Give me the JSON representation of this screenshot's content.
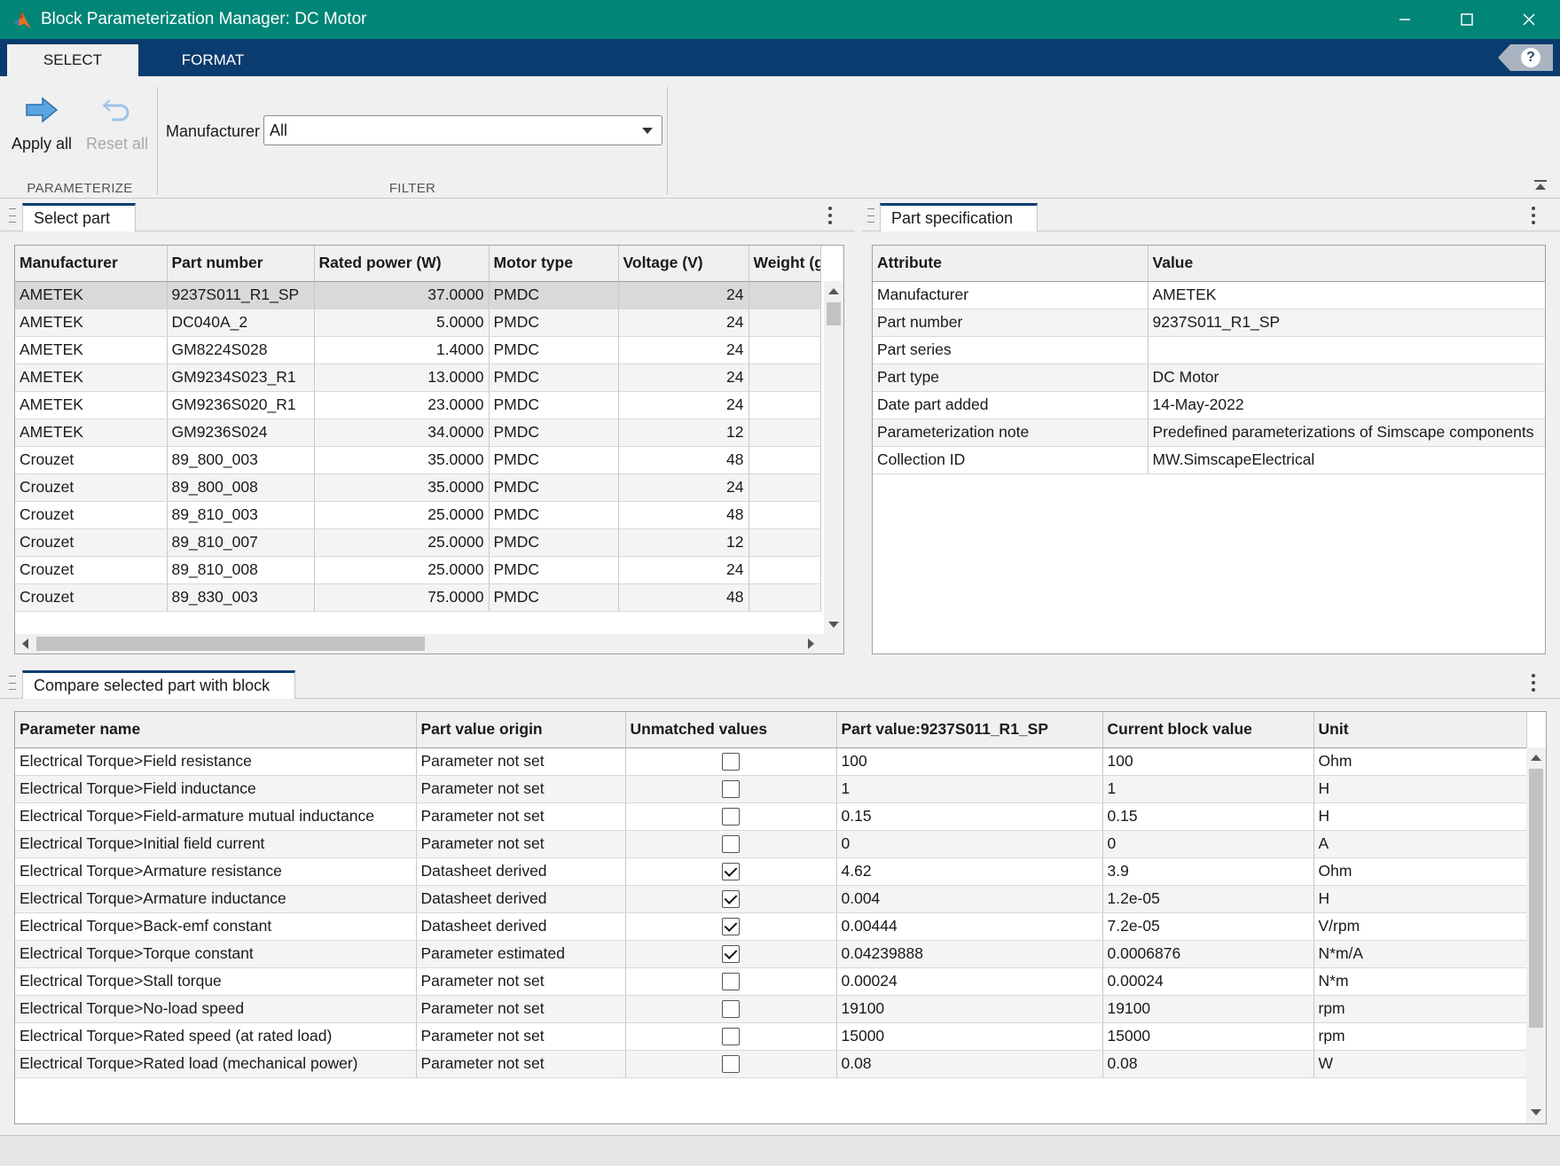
{
  "window": {
    "title": "Block Parameterization Manager: DC Motor"
  },
  "toolstrip": {
    "tabs": [
      "SELECT",
      "FORMAT"
    ],
    "apply_all": "Apply all",
    "reset_all": "Reset all",
    "parameterize_label": "PARAMETERIZE",
    "filter_label": "FILTER",
    "manufacturer_label": "Manufacturer",
    "manufacturer_value": "All"
  },
  "select_part": {
    "tab_label": "Select part",
    "columns": [
      "Manufacturer",
      "Part number",
      "Rated power (W)",
      "Motor type",
      "Voltage (V)",
      "Weight (g"
    ],
    "rows": [
      [
        "AMETEK",
        "9237S011_R1_SP",
        "37.0000",
        "PMDC",
        "24",
        ""
      ],
      [
        "AMETEK",
        "DC040A_2",
        "5.0000",
        "PMDC",
        "24",
        ""
      ],
      [
        "AMETEK",
        "GM8224S028",
        "1.4000",
        "PMDC",
        "24",
        ""
      ],
      [
        "AMETEK",
        "GM9234S023_R1",
        "13.0000",
        "PMDC",
        "24",
        ""
      ],
      [
        "AMETEK",
        "GM9236S020_R1",
        "23.0000",
        "PMDC",
        "24",
        ""
      ],
      [
        "AMETEK",
        "GM9236S024",
        "34.0000",
        "PMDC",
        "12",
        ""
      ],
      [
        "Crouzet",
        "89_800_003",
        "35.0000",
        "PMDC",
        "48",
        ""
      ],
      [
        "Crouzet",
        "89_800_008",
        "35.0000",
        "PMDC",
        "24",
        ""
      ],
      [
        "Crouzet",
        "89_810_003",
        "25.0000",
        "PMDC",
        "48",
        ""
      ],
      [
        "Crouzet",
        "89_810_007",
        "25.0000",
        "PMDC",
        "12",
        ""
      ],
      [
        "Crouzet",
        "89_810_008",
        "25.0000",
        "PMDC",
        "24",
        ""
      ],
      [
        "Crouzet",
        "89_830_003",
        "75.0000",
        "PMDC",
        "48",
        ""
      ]
    ]
  },
  "part_spec": {
    "tab_label": "Part specification",
    "columns": [
      "Attribute",
      "Value"
    ],
    "rows": [
      [
        "Manufacturer",
        "AMETEK"
      ],
      [
        "Part number",
        "9237S011_R1_SP"
      ],
      [
        "Part series",
        ""
      ],
      [
        "Part type",
        "DC Motor"
      ],
      [
        "Date part added",
        "14-May-2022"
      ],
      [
        "Parameterization note",
        "Predefined parameterizations of Simscape components"
      ],
      [
        "Collection ID",
        "MW.SimscapeElectrical"
      ]
    ]
  },
  "compare": {
    "tab_label": "Compare selected part with block",
    "columns": [
      "Parameter name",
      "Part value origin",
      "Unmatched values",
      "Part value:9237S011_R1_SP",
      "Current block value",
      "Unit"
    ],
    "rows": [
      [
        "Electrical Torque>Field resistance",
        "Parameter not set",
        false,
        "100",
        "100",
        "Ohm"
      ],
      [
        "Electrical Torque>Field inductance",
        "Parameter not set",
        false,
        "1",
        "1",
        "H"
      ],
      [
        "Electrical Torque>Field-armature mutual inductance",
        "Parameter not set",
        false,
        "0.15",
        "0.15",
        "H"
      ],
      [
        "Electrical Torque>Initial field current",
        "Parameter not set",
        false,
        "0",
        "0",
        "A"
      ],
      [
        "Electrical Torque>Armature resistance",
        "Datasheet derived",
        true,
        "4.62",
        "3.9",
        "Ohm"
      ],
      [
        "Electrical Torque>Armature inductance",
        "Datasheet derived",
        true,
        "0.004",
        "1.2e-05",
        "H"
      ],
      [
        "Electrical Torque>Back-emf constant",
        "Datasheet derived",
        true,
        "0.00444",
        "7.2e-05",
        "V/rpm"
      ],
      [
        "Electrical Torque>Torque constant",
        "Parameter estimated",
        true,
        "0.04239888",
        "0.0006876",
        "N*m/A"
      ],
      [
        "Electrical Torque>Stall torque",
        "Parameter not set",
        false,
        "0.00024",
        "0.00024",
        "N*m"
      ],
      [
        "Electrical Torque>No-load speed",
        "Parameter not set",
        false,
        "19100",
        "19100",
        "rpm"
      ],
      [
        "Electrical Torque>Rated speed (at rated load)",
        "Parameter not set",
        false,
        "15000",
        "15000",
        "rpm"
      ],
      [
        "Electrical Torque>Rated load (mechanical power)",
        "Parameter not set",
        false,
        "0.08",
        "0.08",
        "W"
      ]
    ]
  },
  "colors": {
    "titlebar": "#008577",
    "tabstrip": "#0b3c6f"
  }
}
